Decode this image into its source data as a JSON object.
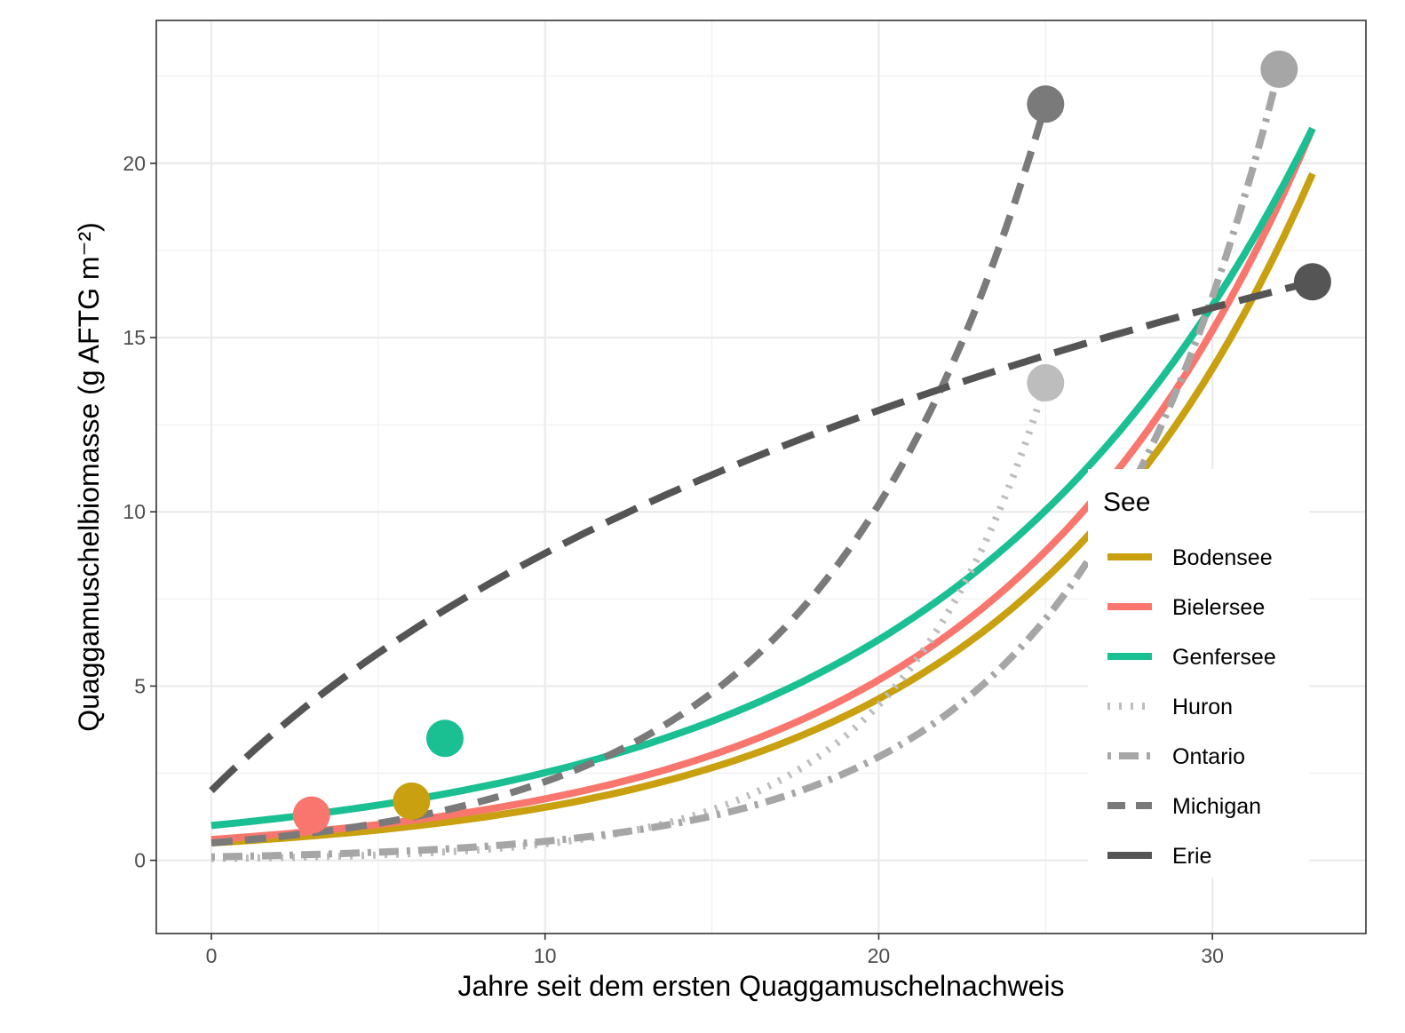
{
  "chart_data": {
    "type": "line",
    "xlabel": "Jahre seit dem ersten Quaggamuschelnachweis",
    "ylabel": "Quaggamuschelbiomasse (g AFTG m⁻²)",
    "xlim": [
      -1.65,
      34.6
    ],
    "ylim": [
      -2.1,
      24.1
    ],
    "x_ticks": [
      0,
      10,
      20,
      30
    ],
    "y_ticks": [
      0,
      5,
      10,
      15,
      20
    ],
    "grid": true,
    "legend_title": "See",
    "legend_position": "right-inside",
    "series": [
      {
        "name": "Bodensee",
        "color": "#C8A010",
        "dash": "solid",
        "curve": "exp",
        "x_range": [
          0,
          33
        ],
        "y_start": 0.5,
        "y_end": 19.7,
        "point": [
          6,
          1.7
        ]
      },
      {
        "name": "Bielersee",
        "color": "#F8766D",
        "dash": "solid",
        "curve": "exp",
        "x_range": [
          0,
          33
        ],
        "y_start": 0.6,
        "y_end": 21.0,
        "point": [
          3,
          1.3
        ]
      },
      {
        "name": "Genfersee",
        "color": "#1ABF92",
        "dash": "solid",
        "curve": "exp",
        "x_range": [
          0,
          33
        ],
        "y_start": 1.0,
        "y_end": 21.0,
        "point": [
          7,
          3.5
        ]
      },
      {
        "name": "Huron",
        "color": "#BDBDBD",
        "dash": "dotted",
        "curve": "exp",
        "x_range": [
          0,
          25
        ],
        "y_start": 0.05,
        "y_end": 13.7,
        "point": [
          25,
          13.7
        ]
      },
      {
        "name": "Ontario",
        "color": "#A6A6A6",
        "dash": "dotdash",
        "curve": "exp",
        "x_range": [
          0,
          32
        ],
        "y_start": 0.1,
        "y_end": 22.7,
        "point": [
          32,
          22.7
        ]
      },
      {
        "name": "Michigan",
        "color": "#7A7A7A",
        "dash": "dashed",
        "curve": "exp",
        "x_range": [
          0,
          25
        ],
        "y_start": 0.5,
        "y_end": 21.7,
        "point": [
          25,
          21.7
        ]
      },
      {
        "name": "Erie",
        "color": "#555555",
        "dash": "longdash",
        "curve": "log",
        "x_range": [
          0,
          33
        ],
        "y_start": 2.0,
        "y_end": 16.6,
        "point": [
          33,
          16.6
        ]
      }
    ]
  }
}
